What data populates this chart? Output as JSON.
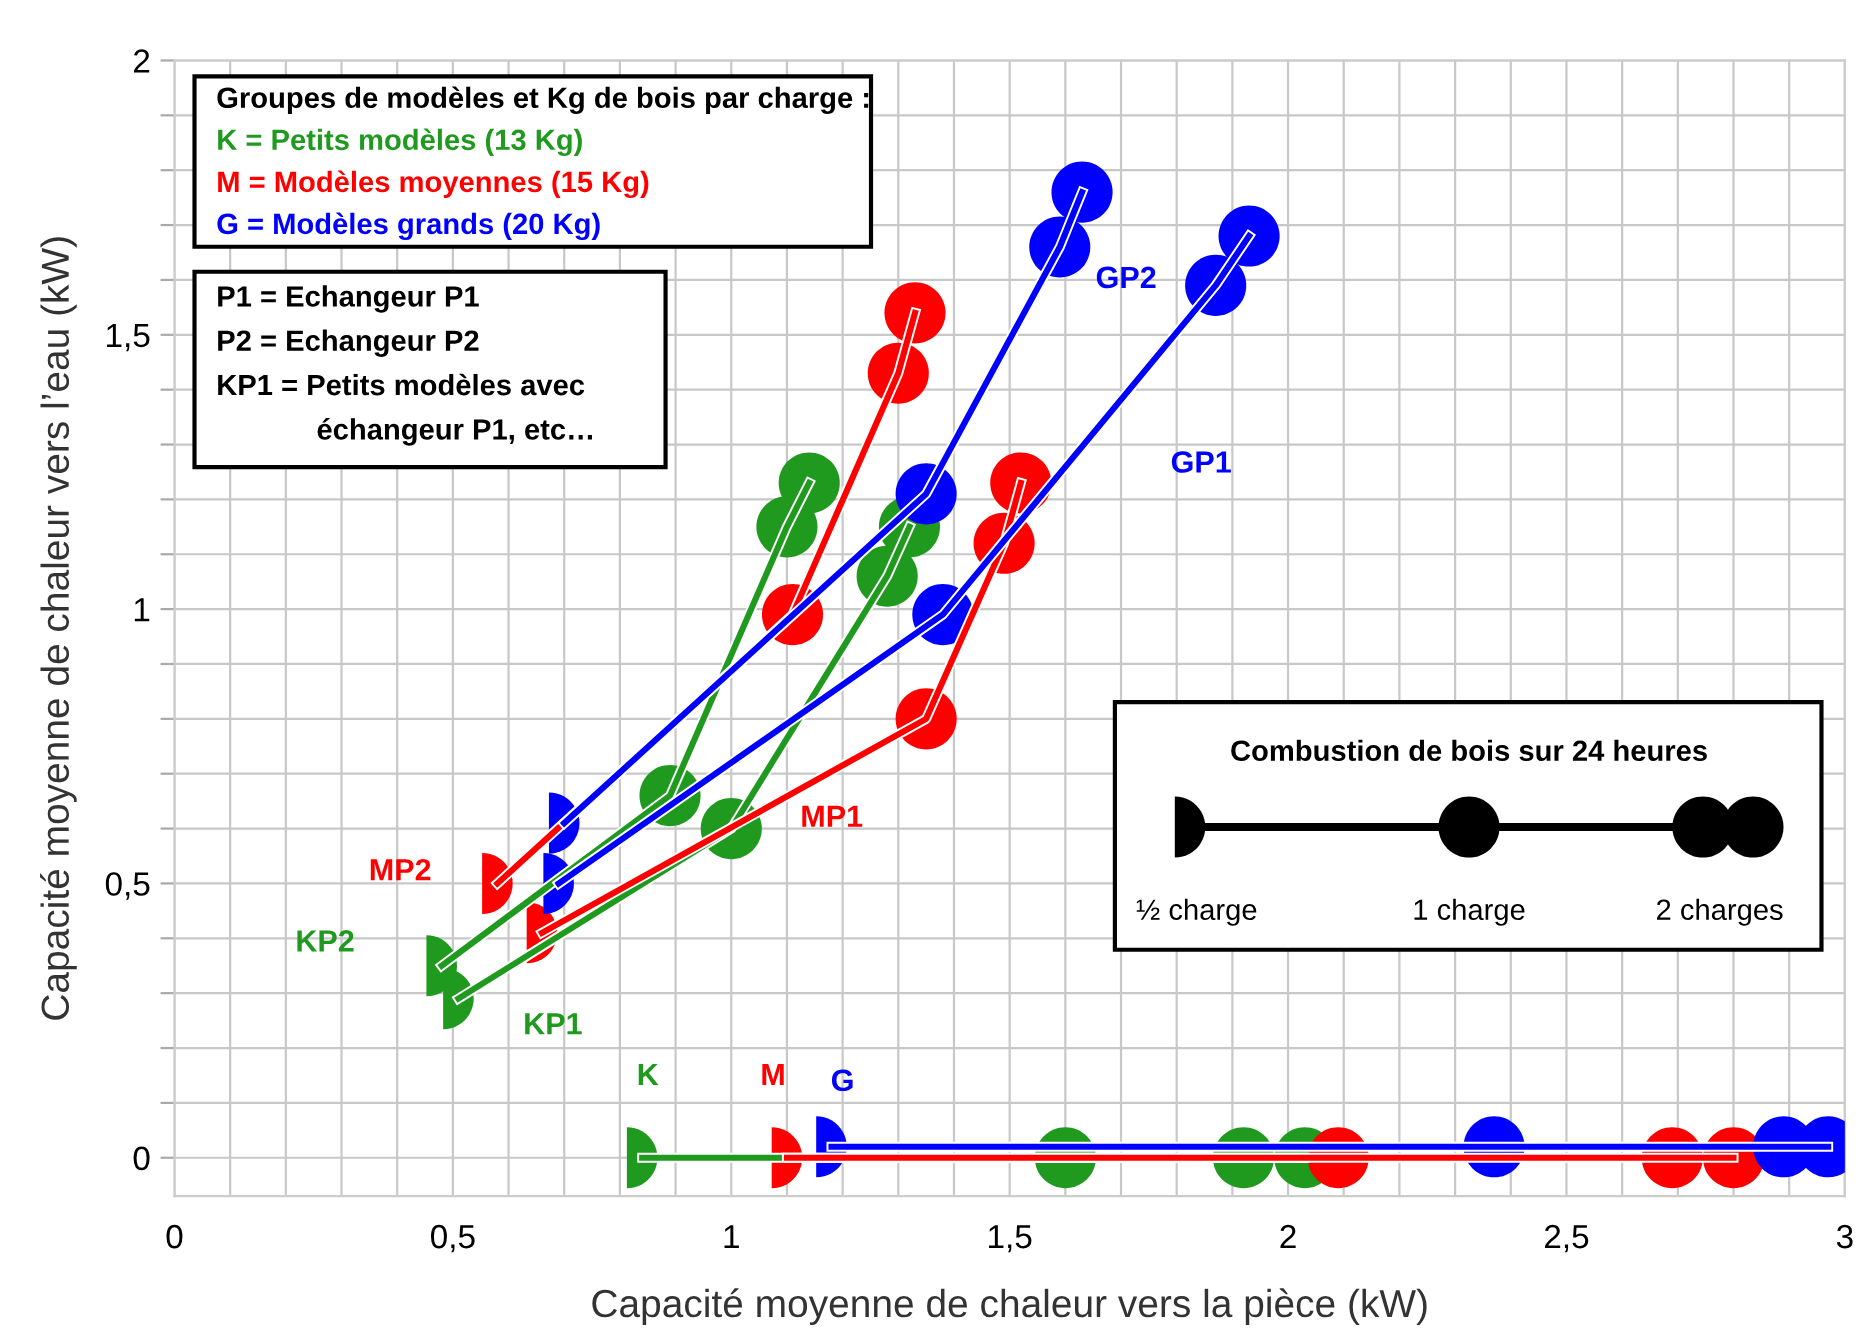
{
  "chart_data": {
    "type": "line",
    "xlabel": "Capacité moyenne de chaleur vers la pièce (kW)",
    "ylabel": "Capacité moyenne de chaleur vers l’eau (kW)",
    "xlim": [
      0,
      3
    ],
    "ylim": [
      -0.07,
      2
    ],
    "xticks": [
      0,
      {
        "value": 0.1,
        "label": null
      },
      {
        "value": 0.2,
        "label": null
      },
      {
        "value": 0.3,
        "label": null
      },
      {
        "value": 0.4,
        "label": null
      },
      {
        "value": 0.5,
        "label": "0,5"
      },
      {
        "value": 0.6,
        "label": null
      },
      {
        "value": 0.7,
        "label": null
      },
      {
        "value": 0.8,
        "label": null
      },
      {
        "value": 0.9,
        "label": null
      },
      1,
      {
        "value": 1.1,
        "label": null
      },
      {
        "value": 1.2,
        "label": null
      },
      {
        "value": 1.3,
        "label": null
      },
      {
        "value": 1.4,
        "label": null
      },
      {
        "value": 1.5,
        "label": "1,5"
      },
      {
        "value": 1.6,
        "label": null
      },
      {
        "value": 1.7,
        "label": null
      },
      {
        "value": 1.8,
        "label": null
      },
      {
        "value": 1.9,
        "label": null
      },
      2,
      {
        "value": 2.1,
        "label": null
      },
      {
        "value": 2.2,
        "label": null
      },
      {
        "value": 2.3,
        "label": null
      },
      {
        "value": 2.4,
        "label": null
      },
      {
        "value": 2.5,
        "label": "2,5"
      },
      {
        "value": 2.6,
        "label": null
      },
      {
        "value": 2.7,
        "label": null
      },
      {
        "value": 2.8,
        "label": null
      },
      {
        "value": 2.9,
        "label": null
      },
      3
    ],
    "yticks": [
      0,
      {
        "value": 0.1,
        "label": null
      },
      {
        "value": 0.2,
        "label": null
      },
      {
        "value": 0.3,
        "label": null
      },
      {
        "value": 0.4,
        "label": null
      },
      {
        "value": 0.5,
        "label": "0,5"
      },
      {
        "value": 0.6,
        "label": null
      },
      {
        "value": 0.7,
        "label": null
      },
      {
        "value": 0.8,
        "label": null
      },
      {
        "value": 0.9,
        "label": null
      },
      1,
      {
        "value": 1.1,
        "label": null
      },
      {
        "value": 1.2,
        "label": null
      },
      {
        "value": 1.3,
        "label": null
      },
      {
        "value": 1.4,
        "label": null
      },
      {
        "value": 1.5,
        "label": "1,5"
      },
      {
        "value": 1.6,
        "label": null
      },
      {
        "value": 1.7,
        "label": null
      },
      {
        "value": 1.8,
        "label": null
      },
      {
        "value": 1.9,
        "label": null
      },
      2
    ],
    "grid": true,
    "marker": "circle",
    "line_style": "solid",
    "legend": false,
    "series": [
      {
        "name": "KP1",
        "color": "#1f9a1f",
        "x": [
          0.51,
          1.0,
          1.28,
          1.32
        ],
        "values": [
          0.29,
          0.6,
          1.06,
          1.15
        ]
      },
      {
        "name": "KP2",
        "color": "#1f9a1f",
        "x": [
          0.48,
          0.89,
          1.1,
          1.14
        ],
        "values": [
          0.35,
          0.66,
          1.15,
          1.23
        ]
      },
      {
        "name": "MP1",
        "color": "#ff0000",
        "x": [
          0.66,
          1.35,
          1.49,
          1.52
        ],
        "values": [
          0.41,
          0.8,
          1.12,
          1.23
        ]
      },
      {
        "name": "MP2",
        "color": "#ff0000",
        "x": [
          0.58,
          1.11,
          1.3,
          1.33
        ],
        "values": [
          0.5,
          0.99,
          1.43,
          1.54
        ]
      },
      {
        "name": "GP1",
        "color": "#0000ff",
        "x": [
          0.69,
          1.38,
          1.87,
          1.93
        ],
        "values": [
          0.5,
          0.99,
          1.59,
          1.68
        ]
      },
      {
        "name": "GP2",
        "color": "#0000ff",
        "x": [
          0.7,
          1.35,
          1.59,
          1.63
        ],
        "values": [
          0.61,
          1.21,
          1.66,
          1.76
        ]
      },
      {
        "name": "K",
        "color": "#1f9a1f",
        "x": [
          0.84,
          1.6,
          1.92,
          2.03
        ],
        "values": [
          0,
          0,
          0,
          0
        ]
      },
      {
        "name": "M",
        "color": "#ff0000",
        "x": [
          1.1,
          2.09,
          2.69,
          2.8
        ],
        "values": [
          0,
          0,
          0,
          0
        ]
      },
      {
        "name": "G",
        "color": "#0000ff",
        "x": [
          1.18,
          2.37,
          2.89,
          2.97
        ],
        "values": [
          0.02,
          0.02,
          0.02,
          0.02
        ]
      }
    ],
    "annotations": [
      "Groupes de modèles et Kg de bois par charge :",
      "K = Petits modèles (13 Kg)",
      "M = Modèles moyennes (15 Kg)",
      "G = Modèles grands (20 Kg)",
      "P1 = Echangeur P1",
      "P2 = Echangeur P2",
      "KP1 = Petits modèles avec",
      "échangeur P1, etc…",
      "Combustion de bois sur 24 heures",
      "½ charge",
      "1 charge",
      "2 charges"
    ]
  }
}
